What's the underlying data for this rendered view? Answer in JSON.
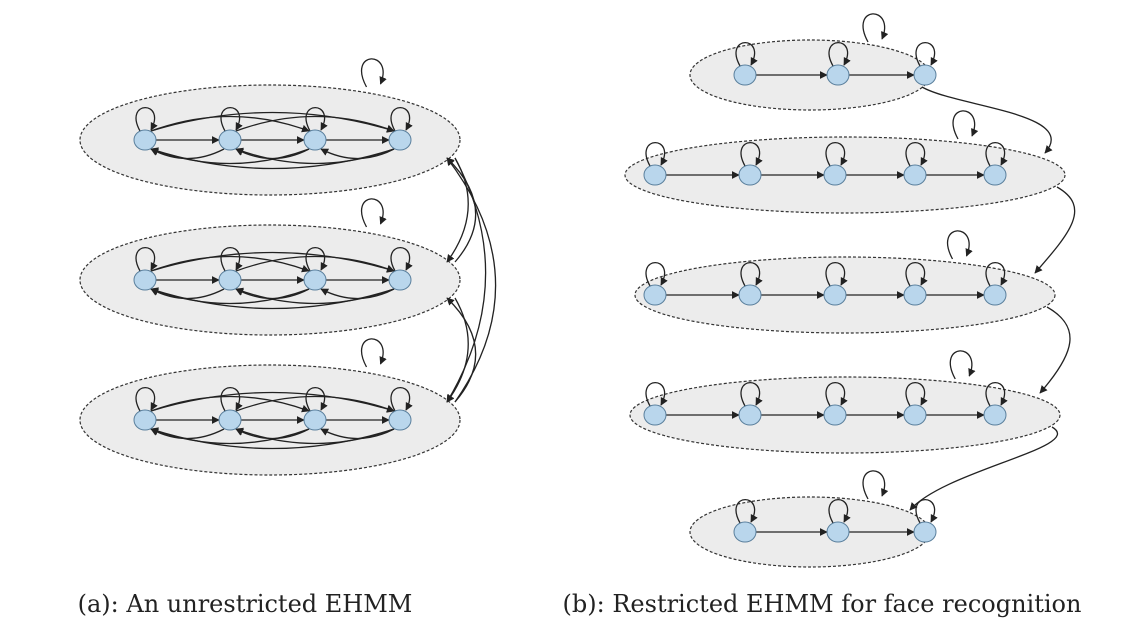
{
  "captions": {
    "a": "(a): An unrestricted EHMM",
    "b": "(b): Restricted EHMM for face recognition"
  }
}
